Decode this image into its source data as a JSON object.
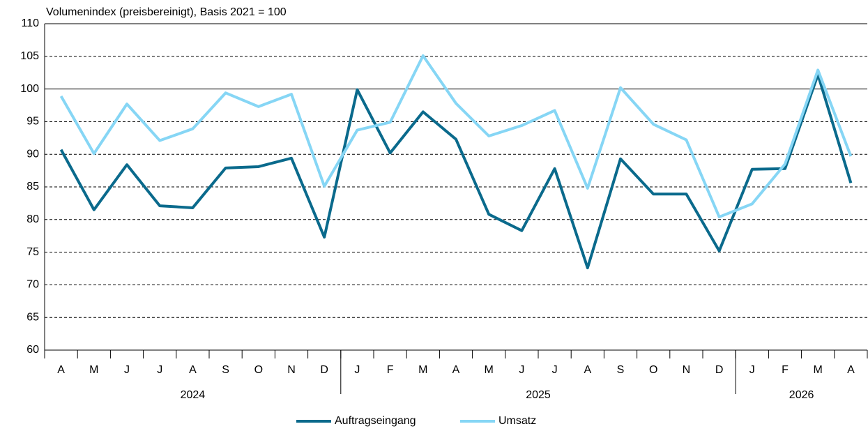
{
  "chart_data": {
    "type": "line",
    "title": "Volumenindex (preisbereinigt), Basis 2021 = 100",
    "categories": [
      "A",
      "M",
      "J",
      "J",
      "A",
      "S",
      "O",
      "N",
      "D",
      "J",
      "F",
      "M",
      "A",
      "M",
      "J",
      "J",
      "A",
      "S",
      "O",
      "N",
      "D",
      "J",
      "F",
      "M",
      "A"
    ],
    "groups": [
      {
        "label": "2024",
        "count": 9
      },
      {
        "label": "2025",
        "count": 12
      },
      {
        "label": "2026",
        "count": 4
      }
    ],
    "series": [
      {
        "name": "Auftragseingang",
        "color": "#0a6a8c",
        "values": [
          90.7,
          81.5,
          88.4,
          82.1,
          81.8,
          87.9,
          88.1,
          89.4,
          77.3,
          99.9,
          90.2,
          96.5,
          92.3,
          80.8,
          78.3,
          87.8,
          72.6,
          89.3,
          83.9,
          83.9,
          75.2,
          87.7,
          87.8,
          102.2,
          85.6
        ]
      },
      {
        "name": "Umsatz",
        "color": "#86d6f5",
        "values": [
          98.9,
          90.1,
          97.7,
          92.1,
          93.9,
          99.4,
          97.3,
          99.2,
          85.1,
          93.7,
          94.9,
          105.1,
          97.8,
          92.8,
          94.4,
          96.7,
          84.8,
          100.2,
          94.6,
          92.2,
          80.4,
          82.4,
          88.5,
          102.9,
          89.7
        ]
      }
    ],
    "ylim": [
      60,
      110
    ],
    "yticks": [
      60,
      65,
      70,
      75,
      80,
      85,
      90,
      95,
      100,
      105,
      110
    ],
    "grid": true,
    "reference_line": 100,
    "legend": "bottom"
  }
}
